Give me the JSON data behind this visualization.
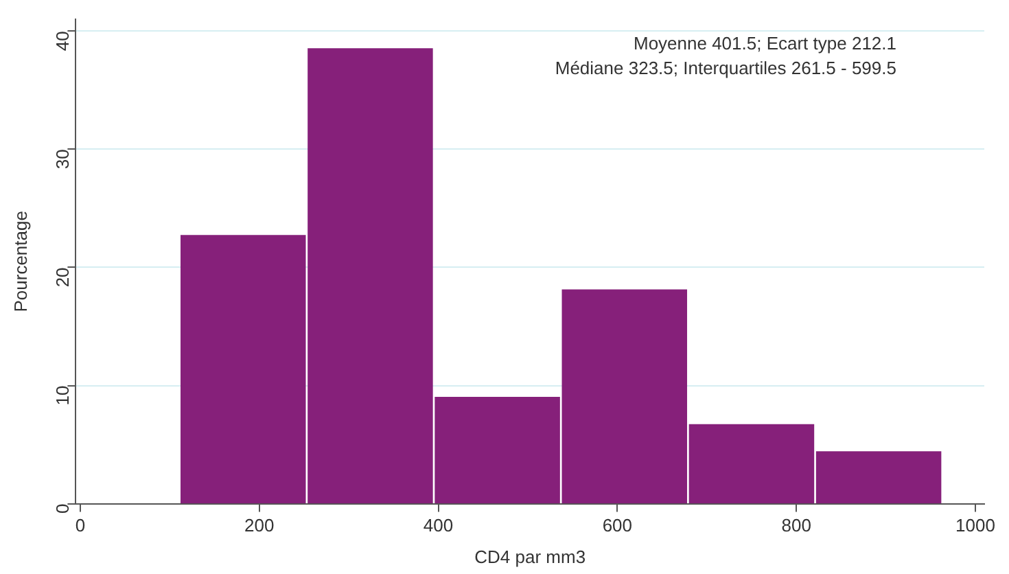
{
  "chart_data": {
    "type": "histogram",
    "xlabel": "CD4 par mm3",
    "ylabel": "Pourcentage",
    "bins": [
      111,
      253,
      395,
      537,
      679,
      821,
      963
    ],
    "values": [
      22.7,
      38.5,
      9.0,
      18.1,
      6.7,
      4.4
    ],
    "color": "#86207a",
    "xlim": [
      -5,
      1010
    ],
    "xticks": [
      0,
      200,
      400,
      600,
      800,
      1000
    ],
    "ylim": [
      0,
      41
    ],
    "yticks": [
      0,
      10,
      20,
      30,
      40
    ],
    "grid": "y",
    "legend": false,
    "annotations": [
      "Moyenne 401.5; Ecart type 212.1",
      "Médiane 323.5; Interquartiles 261.5 - 599.5"
    ]
  }
}
